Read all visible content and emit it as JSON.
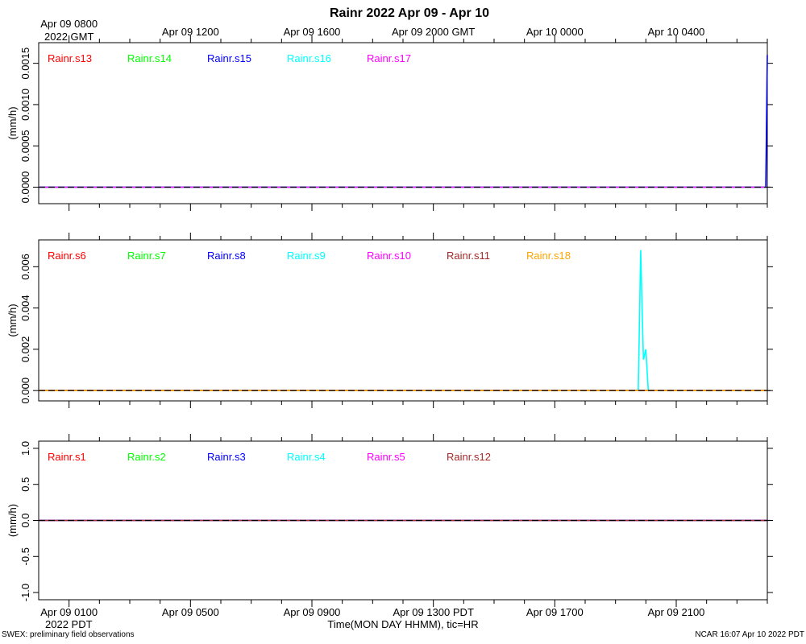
{
  "title": "Rainr 2022 Apr 09 - Apr 10",
  "top_axis": {
    "tick_labels": [
      "Apr 09 0800",
      "Apr 09 1200",
      "Apr 09 1600",
      "Apr 09 2000 GMT",
      "Apr 10 0000",
      "Apr 10 0400"
    ],
    "year_label": "2022 GMT"
  },
  "bottom_axis": {
    "tick_labels": [
      "Apr 09 0100",
      "Apr 09 0500",
      "Apr 09 0900",
      "Apr 09 1300 PDT",
      "Apr 09 1700",
      "Apr 09 2100"
    ],
    "year_label": "2022 PDT",
    "label": "Time(MON DAY HHMM), tic=HR"
  },
  "footer": {
    "left": "SWEX: preliminary field observations",
    "right": "NCAR 16:07 Apr 10 2022 PDT"
  },
  "colors": {
    "red": "#ff0000",
    "green": "#00ff00",
    "blue": "#0000ff",
    "cyan": "#00ffff",
    "magenta": "#ff00ff",
    "brown": "#a52a2a",
    "orange": "#ffa500"
  },
  "chart_data": [
    {
      "type": "line",
      "ylabel": "(mm/h)",
      "x_hours_pdt": [
        0,
        24
      ],
      "ylim": [
        -0.0002,
        0.00175
      ],
      "y_ticks": [
        "0.0000",
        "0.0005",
        "0.0010",
        "0.0015"
      ],
      "y_tick_values": [
        0,
        0.0005,
        0.001,
        0.0015
      ],
      "series": [
        {
          "name": "Rainr.s13",
          "color": "#ff0000",
          "x": [
            0,
            24
          ],
          "y": [
            0,
            0
          ]
        },
        {
          "name": "Rainr.s14",
          "color": "#00ff00",
          "x": [
            0,
            24
          ],
          "y": [
            0,
            0
          ]
        },
        {
          "name": "Rainr.s15",
          "color": "#0000ff",
          "x": [
            0,
            23.95,
            24
          ],
          "y": [
            0,
            0,
            0.0016
          ]
        },
        {
          "name": "Rainr.s16",
          "color": "#00ffff",
          "x": [
            0,
            24
          ],
          "y": [
            0,
            0
          ]
        },
        {
          "name": "Rainr.s17",
          "color": "#ff00ff",
          "x": [
            0,
            24
          ],
          "y": [
            0,
            0
          ]
        }
      ]
    },
    {
      "type": "line",
      "ylabel": "(mm/h)",
      "x_hours_pdt": [
        0,
        24
      ],
      "ylim": [
        -0.0005,
        0.0073
      ],
      "y_ticks": [
        "0.000",
        "0.002",
        "0.004",
        "0.006"
      ],
      "y_tick_values": [
        0,
        0.002,
        0.004,
        0.006
      ],
      "series": [
        {
          "name": "Rainr.s6",
          "color": "#ff0000",
          "x": [
            0,
            24
          ],
          "y": [
            0,
            0
          ]
        },
        {
          "name": "Rainr.s7",
          "color": "#00ff00",
          "x": [
            0,
            24
          ],
          "y": [
            0,
            0
          ]
        },
        {
          "name": "Rainr.s8",
          "color": "#0000ff",
          "x": [
            0,
            24
          ],
          "y": [
            0,
            0
          ]
        },
        {
          "name": "Rainr.s9",
          "color": "#00ffff",
          "x": [
            0,
            19.75,
            19.83,
            19.92,
            20.0,
            20.08,
            20.17,
            24
          ],
          "y": [
            0,
            0,
            0.0068,
            0.0015,
            0.002,
            0,
            0,
            0
          ]
        },
        {
          "name": "Rainr.s10",
          "color": "#ff00ff",
          "x": [
            0,
            24
          ],
          "y": [
            0,
            0
          ]
        },
        {
          "name": "Rainr.s11",
          "color": "#a52a2a",
          "x": [
            0,
            24
          ],
          "y": [
            0,
            0
          ]
        },
        {
          "name": "Rainr.s18",
          "color": "#ffa500",
          "x": [
            0,
            24
          ],
          "y": [
            0,
            0
          ]
        }
      ]
    },
    {
      "type": "line",
      "ylabel": "(mm/h)",
      "x_hours_pdt": [
        0,
        24
      ],
      "ylim": [
        -1.1,
        1.1
      ],
      "y_ticks": [
        "-1.0",
        "-0.5",
        "0.0",
        "0.5",
        "1.0"
      ],
      "y_tick_values": [
        -1.0,
        -0.5,
        0.0,
        0.5,
        1.0
      ],
      "series": [
        {
          "name": "Rainr.s1",
          "color": "#ff0000",
          "x": [
            0,
            24
          ],
          "y": [
            0,
            0
          ]
        },
        {
          "name": "Rainr.s2",
          "color": "#00ff00",
          "x": [
            0,
            24
          ],
          "y": [
            0,
            0
          ]
        },
        {
          "name": "Rainr.s3",
          "color": "#0000ff",
          "x": [
            0,
            24
          ],
          "y": [
            0,
            0
          ]
        },
        {
          "name": "Rainr.s4",
          "color": "#00ffff",
          "x": [
            0,
            24
          ],
          "y": [
            0,
            0
          ]
        },
        {
          "name": "Rainr.s5",
          "color": "#ff00ff",
          "x": [
            0,
            24
          ],
          "y": [
            0,
            0
          ]
        },
        {
          "name": "Rainr.s12",
          "color": "#a52a2a",
          "x": [
            0,
            24
          ],
          "y": [
            0,
            0
          ]
        }
      ]
    }
  ]
}
